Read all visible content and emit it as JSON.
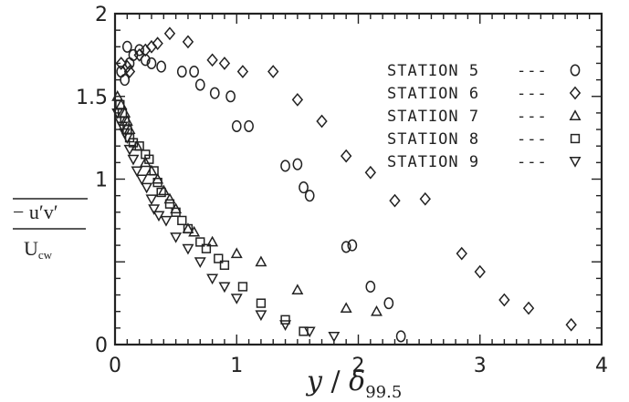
{
  "chart_data": {
    "type": "scatter",
    "title": "",
    "xlabel": {
      "var": "y",
      "sep": " / ",
      "sym": "δ",
      "sub": "99.5"
    },
    "ylabel": {
      "numerator": "− u′v′",
      "denominator": "U",
      "denominator_sub": "cw"
    },
    "xlim": [
      0,
      4
    ],
    "ylim": [
      0,
      2
    ],
    "x_ticks": [
      0,
      1,
      2,
      3,
      4
    ],
    "x_tick_labels": [
      "0",
      "1",
      "2",
      "3",
      "4"
    ],
    "y_ticks": [
      0,
      0.5,
      1,
      1.5,
      2
    ],
    "y_tick_labels": [
      "0",
      "",
      "1",
      "1.5",
      "2"
    ],
    "grid": false,
    "legend_position": "top-right",
    "legend_separator": "---",
    "series": [
      {
        "name": "STATION 5",
        "marker": "circle",
        "x": [
          0.05,
          0.08,
          0.12,
          0.1,
          0.15,
          0.2,
          0.25,
          0.3,
          0.38,
          0.55,
          0.65,
          0.7,
          0.82,
          0.95,
          1.0,
          1.1,
          1.4,
          1.5,
          1.55,
          1.6,
          1.9,
          1.95,
          2.1,
          2.25,
          2.35
        ],
        "y": [
          1.65,
          1.6,
          1.7,
          1.8,
          1.75,
          1.78,
          1.72,
          1.7,
          1.68,
          1.65,
          1.65,
          1.57,
          1.52,
          1.5,
          1.32,
          1.32,
          1.08,
          1.09,
          0.95,
          0.9,
          0.59,
          0.6,
          0.35,
          0.25,
          0.05
        ]
      },
      {
        "name": "STATION 6",
        "marker": "diamond",
        "x": [
          0.05,
          0.1,
          0.12,
          0.2,
          0.25,
          0.3,
          0.35,
          0.45,
          0.6,
          0.8,
          0.9,
          1.05,
          1.3,
          1.5,
          1.7,
          1.9,
          2.1,
          2.3,
          2.55,
          2.85,
          3.0,
          3.2,
          3.4,
          3.75
        ],
        "y": [
          1.7,
          1.68,
          1.65,
          1.75,
          1.78,
          1.8,
          1.82,
          1.88,
          1.83,
          1.72,
          1.7,
          1.65,
          1.65,
          1.48,
          1.35,
          1.14,
          1.04,
          0.87,
          0.88,
          0.55,
          0.44,
          0.27,
          0.22,
          0.12
        ],
        "note": "plot marks drawn with offset to match original screenshot"
      },
      {
        "name": "STATION 7",
        "marker": "triangle-up",
        "x": [
          0.02,
          0.05,
          0.08,
          0.1,
          0.12,
          0.18,
          0.25,
          0.3,
          0.35,
          0.4,
          0.45,
          0.5,
          0.6,
          0.65,
          0.8,
          1.0,
          1.2,
          1.5,
          1.9,
          2.15
        ],
        "y": [
          1.5,
          1.45,
          1.4,
          1.35,
          1.3,
          1.2,
          1.1,
          1.05,
          1.0,
          0.93,
          0.88,
          0.82,
          0.7,
          0.68,
          0.62,
          0.55,
          0.5,
          0.33,
          0.22,
          0.2
        ]
      },
      {
        "name": "STATION 8",
        "marker": "square",
        "x": [
          0.04,
          0.06,
          0.08,
          0.1,
          0.12,
          0.15,
          0.2,
          0.25,
          0.28,
          0.32,
          0.35,
          0.38,
          0.45,
          0.5,
          0.55,
          0.6,
          0.7,
          0.75,
          0.85,
          0.9,
          1.05,
          1.2,
          1.4,
          1.55
        ],
        "y": [
          1.45,
          1.4,
          1.35,
          1.3,
          1.25,
          1.22,
          1.2,
          1.15,
          1.12,
          1.05,
          0.98,
          0.92,
          0.85,
          0.8,
          0.75,
          0.7,
          0.62,
          0.58,
          0.52,
          0.48,
          0.35,
          0.25,
          0.15,
          0.08
        ]
      },
      {
        "name": "STATION 9",
        "marker": "triangle-down",
        "x": [
          0.02,
          0.04,
          0.06,
          0.08,
          0.1,
          0.12,
          0.15,
          0.18,
          0.22,
          0.26,
          0.3,
          0.32,
          0.36,
          0.42,
          0.5,
          0.6,
          0.7,
          0.8,
          0.9,
          1.0,
          1.2,
          1.4,
          1.6,
          1.8
        ],
        "y": [
          1.4,
          1.35,
          1.32,
          1.28,
          1.25,
          1.18,
          1.12,
          1.05,
          1.0,
          0.95,
          0.88,
          0.82,
          0.78,
          0.75,
          0.65,
          0.58,
          0.5,
          0.4,
          0.35,
          0.28,
          0.18,
          0.12,
          0.08,
          0.05
        ]
      }
    ]
  }
}
